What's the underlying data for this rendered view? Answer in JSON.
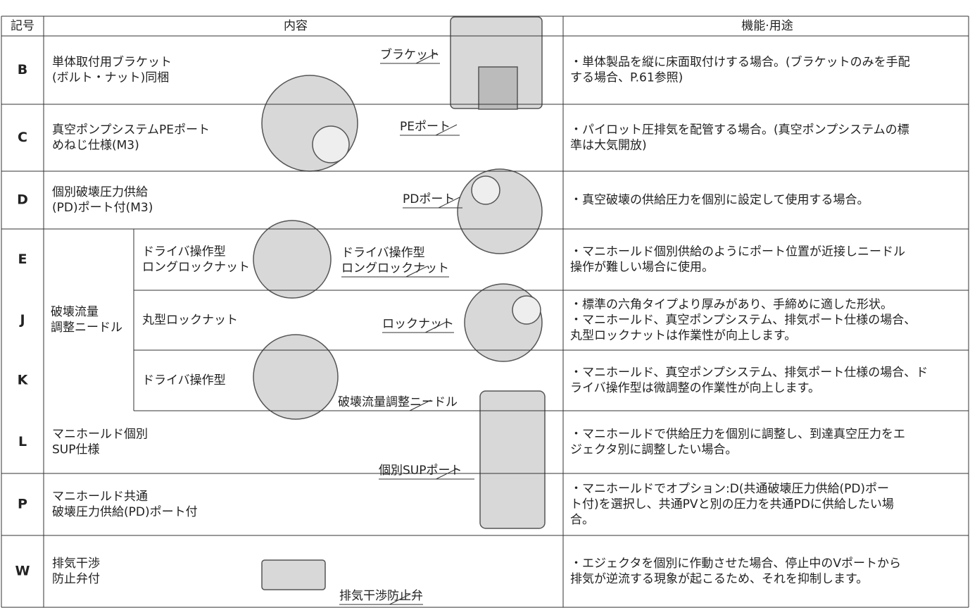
{
  "header": {
    "code": "記号",
    "content": "内容",
    "function": "機能·用途"
  },
  "group_label": [
    "破壊流量",
    "調整ニードル"
  ],
  "rows": [
    {
      "code": "B",
      "content": [
        "単体取付用ブラケット",
        "(ボルト・ナット)同梱"
      ],
      "callout": [
        "ブラケット"
      ],
      "function": [
        "・単体製品を縦に床面取付けする場合。(ブラケットのみを手配",
        "する場合、P.61参照)"
      ]
    },
    {
      "code": "C",
      "content": [
        "真空ポンプシステムPEポート",
        "めねじ仕様(M3)"
      ],
      "callout": [
        "PEポート"
      ],
      "function": [
        "・パイロット圧排気を配管する場合。(真空ポンプシステムの標",
        "準は大気開放)"
      ]
    },
    {
      "code": "D",
      "content": [
        "個別破壊圧力供給",
        "(PD)ポート付(M3)"
      ],
      "callout": [
        "PDポート"
      ],
      "function": [
        "・真空破壊の供給圧力を個別に設定して使用する場合。"
      ]
    },
    {
      "code": "E",
      "content": [
        "ドライバ操作型",
        "ロングロックナット"
      ],
      "callout": [
        "ドライバ操作型",
        "ロングロックナット"
      ],
      "function": [
        "・マニホールド個別供給のようにポート位置が近接しニードル",
        "操作が難しい場合に使用。"
      ]
    },
    {
      "code": "J",
      "content": [
        "丸型ロックナット"
      ],
      "callout": [
        "ロックナット"
      ],
      "function": [
        "・標準の六角タイプより厚みがあり、手締めに適した形状。",
        "・マニホールド、真空ポンプシステム、排気ポート仕様の場合、",
        "丸型ロックナットは作業性が向上します。"
      ]
    },
    {
      "code": "K",
      "content": [
        "ドライバ操作型"
      ],
      "callout": [
        "破壊流量調整ニードル"
      ],
      "function": [
        "・マニホールド、真空ポンプシステム、排気ポート仕様の場合、ド",
        "ライバ操作型は微調整の作業性が向上します。"
      ]
    },
    {
      "code": "L",
      "content": [
        "マニホールド個別",
        "SUP仕様"
      ],
      "callout": [
        "個別SUPポート"
      ],
      "function": [
        "・マニホールドで供給圧力を個別に調整し、到達真空圧力をエ",
        "ジェクタ別に調整したい場合。"
      ]
    },
    {
      "code": "P",
      "content": [
        "マニホールド共通",
        "破壊圧力供給(PD)ポート付"
      ],
      "function": [
        "・マニホールドでオプション:D(共通破壊圧力供給(PD)ポー",
        "ト付)を選択し、共通PVと別の圧力を共通PDに供給したい場",
        "合。"
      ]
    },
    {
      "code": "W",
      "content": [
        "排気干渉",
        "防止弁付"
      ],
      "callout": [
        "排気干渉防止弁"
      ],
      "function": [
        "・エジェクタを個別に作動させた場合、停止中のVポートから",
        "排気が逆流する現象が起こるため、それを抑制します。"
      ]
    }
  ]
}
